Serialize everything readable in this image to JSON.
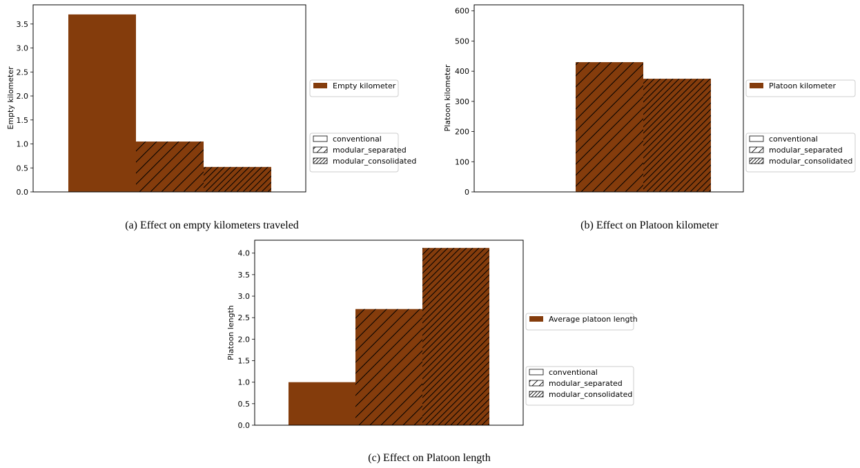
{
  "bar_color": "#843c0c",
  "chart_data": [
    {
      "type": "bar",
      "caption": "(a) Effect on empty kilometers traveled",
      "ylabel": "Empty kilometer",
      "ylim": [
        0,
        3.9
      ],
      "yticks": [
        "0.0",
        "0.5",
        "1.0",
        "1.5",
        "2.0",
        "2.5",
        "3.0",
        "3.5"
      ],
      "ytick_values": [
        0,
        0.5,
        1.0,
        1.5,
        2.0,
        2.5,
        3.0,
        3.5
      ],
      "categories": [
        "conventional",
        "modular_separated",
        "modular_consolidated"
      ],
      "values": [
        3.7,
        1.05,
        0.52
      ],
      "legend_series": [
        "Empty kilometer"
      ],
      "legend_hatch": [
        "conventional",
        "modular_separated",
        "modular_consolidated"
      ]
    },
    {
      "type": "bar",
      "caption": "(b) Effect on Platoon kilometer",
      "ylabel": "Platoon kilometer",
      "ylim": [
        0,
        620
      ],
      "yticks": [
        "0",
        "100",
        "200",
        "300",
        "400",
        "500",
        "600"
      ],
      "ytick_values": [
        0,
        100,
        200,
        300,
        400,
        500,
        600
      ],
      "categories": [
        "conventional",
        "modular_separated",
        "modular_consolidated"
      ],
      "values": [
        0,
        430,
        375
      ],
      "legend_series": [
        "Platoon kilometer"
      ],
      "legend_hatch": [
        "conventional",
        "modular_separated",
        "modular_consolidated"
      ]
    },
    {
      "type": "bar",
      "caption": "(c) Effect on Platoon length",
      "ylabel": "Platoon length",
      "ylim": [
        0,
        4.3
      ],
      "yticks": [
        "0.0",
        "0.5",
        "1.0",
        "1.5",
        "2.0",
        "2.5",
        "3.0",
        "3.5",
        "4.0"
      ],
      "ytick_values": [
        0,
        0.5,
        1.0,
        1.5,
        2.0,
        2.5,
        3.0,
        3.5,
        4.0
      ],
      "categories": [
        "conventional",
        "modular_separated",
        "modular_consolidated"
      ],
      "values": [
        1.0,
        2.7,
        4.12
      ],
      "legend_series": [
        "Average platoon length"
      ],
      "legend_hatch": [
        "conventional",
        "modular_separated",
        "modular_consolidated"
      ]
    }
  ]
}
